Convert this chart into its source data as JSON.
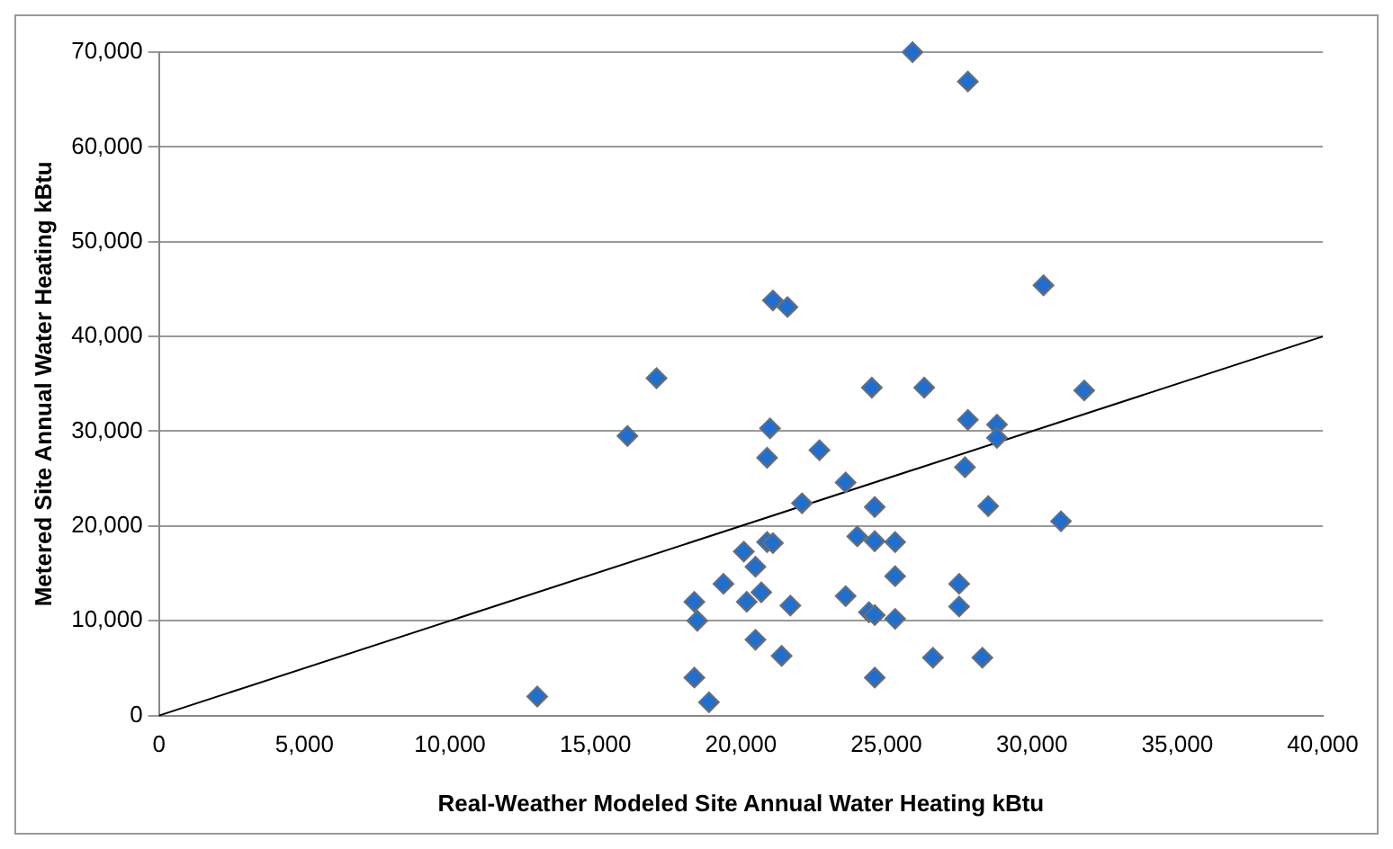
{
  "chart_data": {
    "type": "scatter",
    "xlabel": "Real-Weather Modeled Site Annual Water Heating kBtu",
    "ylabel": "Metered Site Annual Water Heating kBtu",
    "xlim": [
      0,
      40000
    ],
    "ylim": [
      0,
      70000
    ],
    "xticks": [
      {
        "value": 0,
        "label": "0"
      },
      {
        "value": 5000,
        "label": "5,000"
      },
      {
        "value": 10000,
        "label": "10,000"
      },
      {
        "value": 15000,
        "label": "15,000"
      },
      {
        "value": 20000,
        "label": "20,000"
      },
      {
        "value": 25000,
        "label": "25,000"
      },
      {
        "value": 30000,
        "label": "30,000"
      },
      {
        "value": 35000,
        "label": "35,000"
      },
      {
        "value": 40000,
        "label": "40,000"
      }
    ],
    "yticks": [
      {
        "value": 0,
        "label": "0"
      },
      {
        "value": 10000,
        "label": "10,000"
      },
      {
        "value": 20000,
        "label": "20,000"
      },
      {
        "value": 30000,
        "label": "30,000"
      },
      {
        "value": 40000,
        "label": "40,000"
      },
      {
        "value": 50000,
        "label": "50,000"
      },
      {
        "value": 60000,
        "label": "60,000"
      },
      {
        "value": 70000,
        "label": "70,000"
      }
    ],
    "grid": "y",
    "legend": false,
    "marker": "diamond",
    "series": [
      {
        "color": "#1f6fd1",
        "x": [
          13000,
          16100,
          17100,
          18400,
          18500,
          18400,
          18900,
          19400,
          20100,
          20200,
          20500,
          20500,
          20700,
          20900,
          21100,
          20900,
          21000,
          21100,
          21600,
          21400,
          21700,
          22100,
          22700,
          23600,
          23600,
          24000,
          24400,
          24600,
          24500,
          24600,
          24600,
          25300,
          25300,
          25300,
          24600,
          25900,
          26300,
          26600,
          27500,
          27500,
          27700,
          27800,
          27800,
          28300,
          28500,
          28800,
          28800,
          30400,
          31000,
          31800
        ],
        "values": [
          2000,
          29500,
          35600,
          12000,
          10000,
          4000,
          1400,
          13900,
          17300,
          12000,
          15700,
          8000,
          13000,
          18300,
          18200,
          27200,
          30300,
          43800,
          43100,
          6300,
          11600,
          22400,
          28000,
          24600,
          12600,
          18900,
          10900,
          10600,
          34600,
          22000,
          18400,
          18300,
          14700,
          10200,
          4000,
          70000,
          34600,
          6100,
          13900,
          11500,
          26200,
          31200,
          66900,
          6100,
          22100,
          30700,
          29300,
          45400,
          20500,
          34300
        ]
      },
      {
        "type": "line",
        "color": "#000000",
        "marker": "none",
        "x": [
          0,
          40000
        ],
        "values": [
          0,
          40000
        ]
      }
    ]
  }
}
